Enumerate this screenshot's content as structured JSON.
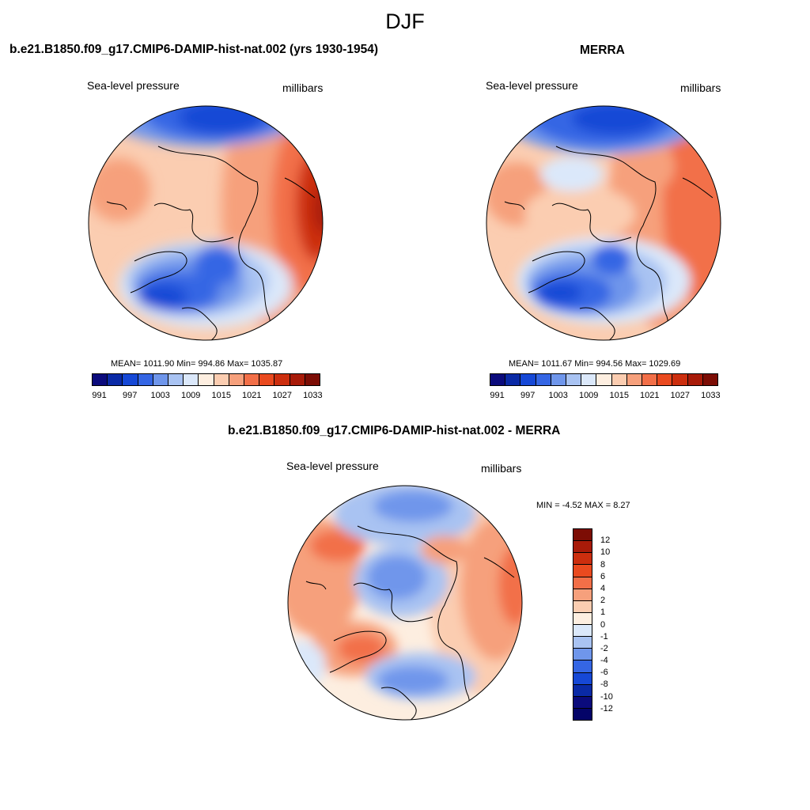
{
  "figure": {
    "title": "DJF"
  },
  "panels": [
    {
      "title": "b.e21.B1850.f09_g17.CMIP6-DAMIP-hist-nat.002 (yrs 1930-1954)",
      "left_label": "Sea-level pressure",
      "right_label": "millibars",
      "stats": "MEAN= 1011.90  Min= 994.86  Max= 1035.87"
    },
    {
      "title": "MERRA",
      "left_label": "Sea-level pressure",
      "right_label": "millibars",
      "stats": "MEAN= 1011.67  Min= 994.56  Max= 1029.69"
    },
    {
      "title": "b.e21.B1850.f09_g17.CMIP6-DAMIP-hist-nat.002 - MERRA",
      "left_label": "Sea-level pressure",
      "right_label": "millibars",
      "stats": "MIN =  -4.52 MAX =   8.27"
    }
  ],
  "colorbars": {
    "absolute": {
      "colors": [
        "#0b0b7c",
        "#0a2aa6",
        "#1648d6",
        "#3566e4",
        "#6f96eb",
        "#a9c3f2",
        "#dbe8fa",
        "#fdeee0",
        "#fbcdb1",
        "#f6a07c",
        "#f26f48",
        "#ea4a1f",
        "#cc2e0e",
        "#a81b09",
        "#7c0d05"
      ],
      "tick_labels": [
        "991",
        "997",
        "1003",
        "1009",
        "1015",
        "1021",
        "1027",
        "1033"
      ]
    },
    "difference": {
      "colors": [
        "#7c0d05",
        "#a81b09",
        "#cc2e0e",
        "#ea4a1f",
        "#f26f48",
        "#f6a07c",
        "#fbcdb1",
        "#fdeee0",
        "#dbe8fa",
        "#a9c3f2",
        "#6f96eb",
        "#3566e4",
        "#1648d6",
        "#0a2aa6",
        "#0b0b7c",
        "#040468"
      ],
      "tick_labels": [
        "12",
        "10",
        "8",
        "6",
        "4",
        "2",
        "1",
        "0",
        "-1",
        "-2",
        "-4",
        "-6",
        "-8",
        "-10",
        "-12"
      ]
    }
  },
  "chart_data": [
    {
      "type": "heatmap",
      "title": "b.e21.B1850.f09_g17.CMIP6-DAMIP-hist-nat.002 (yrs 1930-1954)",
      "variable": "Sea-level pressure",
      "units": "millibars",
      "projection": "north polar stereographic",
      "mean": 1011.9,
      "min": 994.86,
      "max": 1035.87,
      "colorbar_levels": [
        991,
        994,
        997,
        1000,
        1003,
        1006,
        1009,
        1012,
        1015,
        1018,
        1021,
        1024,
        1027,
        1030,
        1033
      ]
    },
    {
      "type": "heatmap",
      "title": "MERRA",
      "variable": "Sea-level pressure",
      "units": "millibars",
      "projection": "north polar stereographic",
      "mean": 1011.67,
      "min": 994.56,
      "max": 1029.69,
      "colorbar_levels": [
        991,
        994,
        997,
        1000,
        1003,
        1006,
        1009,
        1012,
        1015,
        1018,
        1021,
        1024,
        1027,
        1030,
        1033
      ]
    },
    {
      "type": "heatmap",
      "title": "b.e21.B1850.f09_g17.CMIP6-DAMIP-hist-nat.002 - MERRA",
      "variable": "Sea-level pressure",
      "units": "millibars",
      "projection": "north polar stereographic",
      "min": -4.52,
      "max": 8.27,
      "colorbar_levels": [
        12,
        10,
        8,
        6,
        4,
        2,
        1,
        0,
        -1,
        -2,
        -4,
        -6,
        -8,
        -10,
        -12
      ]
    }
  ]
}
